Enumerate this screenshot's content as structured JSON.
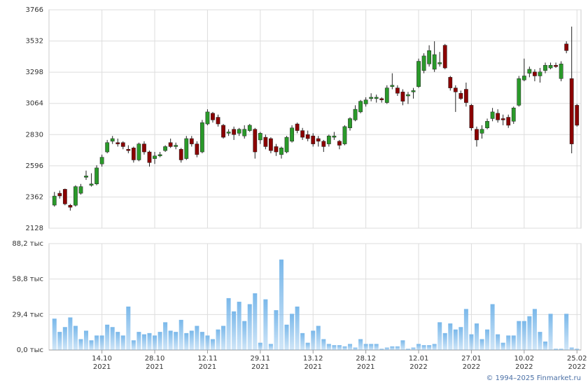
{
  "chart_data": {
    "type": "candlestick",
    "categories": [
      null,
      null,
      null,
      null,
      null,
      null,
      null,
      null,
      null,
      "14.10 2021",
      null,
      null,
      null,
      null,
      null,
      null,
      null,
      null,
      null,
      "28.10 2021",
      null,
      null,
      null,
      null,
      null,
      null,
      null,
      null,
      null,
      "12.11 2021",
      null,
      null,
      null,
      null,
      null,
      null,
      null,
      null,
      null,
      "29.11 2021",
      null,
      null,
      null,
      null,
      null,
      null,
      null,
      null,
      null,
      "13.12 2021",
      null,
      null,
      null,
      null,
      null,
      null,
      null,
      null,
      null,
      "28.12 2021",
      null,
      null,
      null,
      null,
      null,
      null,
      null,
      null,
      null,
      "12.01 2022",
      null,
      null,
      null,
      null,
      null,
      null,
      null,
      null,
      null,
      "27.01 2022",
      null,
      null,
      null,
      null,
      null,
      null,
      null,
      null,
      null,
      "10.02 2022",
      null,
      null,
      null,
      null,
      null,
      null,
      null,
      null,
      null,
      "25.02 2022"
    ],
    "open": [
      2301,
      2390,
      2420,
      2300,
      2300,
      2390,
      2510,
      2450,
      2460,
      2610,
      2700,
      2780,
      2770,
      2770,
      2720,
      2730,
      2640,
      2760,
      2700,
      2650,
      2670,
      2710,
      2770,
      2740,
      2720,
      2650,
      2800,
      2760,
      2700,
      2910,
      2990,
      2960,
      2900,
      2840,
      2870,
      2840,
      2820,
      2860,
      2870,
      2790,
      2810,
      2800,
      2740,
      2680,
      2700,
      2780,
      2910,
      2860,
      2830,
      2820,
      2800,
      2780,
      2760,
      2810,
      2780,
      2760,
      2880,
      2940,
      3000,
      3060,
      3100,
      3100,
      3100,
      3070,
      3190,
      3180,
      3150,
      3120,
      3150,
      3190,
      3310,
      3360,
      3320,
      3360,
      3500,
      3260,
      3180,
      3140,
      3170,
      3050,
      2870,
      2840,
      2880,
      2950,
      2990,
      2950,
      2960,
      2930,
      3050,
      3240,
      3290,
      3300,
      3270,
      3310,
      3330,
      3350,
      3250,
      3510,
      3250,
      3050
    ],
    "high": [
      2400,
      2410,
      2425,
      2310,
      2450,
      2460,
      2560,
      2540,
      2600,
      2680,
      2790,
      2820,
      2800,
      2780,
      2750,
      2740,
      2770,
      2780,
      2710,
      2700,
      2700,
      2750,
      2800,
      2770,
      2730,
      2820,
      2820,
      2780,
      2940,
      3020,
      3000,
      2980,
      2910,
      2870,
      2890,
      2880,
      2900,
      2910,
      2880,
      2850,
      2830,
      2810,
      2760,
      2740,
      2820,
      2900,
      2920,
      2880,
      2860,
      2840,
      2820,
      2790,
      2830,
      2850,
      2790,
      2900,
      2960,
      3050,
      3090,
      3110,
      3140,
      3130,
      3110,
      3200,
      3290,
      3200,
      3170,
      3150,
      3180,
      3400,
      3440,
      3500,
      3530,
      3450,
      3510,
      3270,
      3200,
      3160,
      3220,
      3060,
      2890,
      2900,
      2950,
      3030,
      3020,
      2980,
      2980,
      3040,
      3270,
      3400,
      3340,
      3320,
      3330,
      3370,
      3370,
      3370,
      3380,
      3530,
      3640,
      3060
    ],
    "low": [
      2290,
      2350,
      2300,
      2260,
      2290,
      2380,
      2490,
      2440,
      2450,
      2590,
      2690,
      2760,
      2740,
      2720,
      2690,
      2620,
      2630,
      2680,
      2590,
      2610,
      2660,
      2700,
      2730,
      2720,
      2620,
      2640,
      2740,
      2660,
      2690,
      2900,
      2920,
      2890,
      2800,
      2820,
      2790,
      2820,
      2800,
      2850,
      2650,
      2760,
      2720,
      2690,
      2670,
      2650,
      2690,
      2770,
      2840,
      2790,
      2780,
      2740,
      2740,
      2700,
      2740,
      2790,
      2720,
      2750,
      2860,
      2930,
      2990,
      3040,
      3080,
      3070,
      3070,
      3060,
      3170,
      3120,
      3050,
      3060,
      3100,
      3180,
      3290,
      3340,
      3300,
      3340,
      3320,
      3160,
      3000,
      3090,
      3040,
      2860,
      2740,
      2800,
      2870,
      2930,
      2920,
      2900,
      2880,
      2910,
      3040,
      3230,
      3260,
      3230,
      3220,
      3290,
      3320,
      3330,
      3230,
      3440,
      2690,
      2890
    ],
    "close": [
      2369,
      2370,
      2310,
      2285,
      2440,
      2440,
      2520,
      2460,
      2580,
      2660,
      2770,
      2800,
      2760,
      2740,
      2710,
      2640,
      2760,
      2700,
      2620,
      2670,
      2680,
      2740,
      2740,
      2750,
      2640,
      2800,
      2760,
      2680,
      2920,
      3000,
      2940,
      2910,
      2810,
      2850,
      2830,
      2870,
      2870,
      2900,
      2700,
      2840,
      2740,
      2710,
      2700,
      2730,
      2810,
      2880,
      2860,
      2810,
      2800,
      2760,
      2780,
      2740,
      2820,
      2820,
      2750,
      2890,
      2950,
      3020,
      3080,
      3090,
      3110,
      3110,
      3090,
      3180,
      3200,
      3140,
      3080,
      3130,
      3160,
      3380,
      3420,
      3460,
      3430,
      3370,
      3330,
      3180,
      3150,
      3100,
      3070,
      2880,
      2790,
      2870,
      2930,
      3000,
      2940,
      2940,
      2900,
      3030,
      3250,
      3270,
      3320,
      3270,
      3300,
      3350,
      3350,
      3340,
      3360,
      3460,
      2760,
      2900
    ],
    "up_color": "#2a9a2a",
    "down_color": "#8b0000",
    "ylim": [
      2128,
      3766
    ],
    "yticks": [
      2128,
      2362,
      2596,
      2830,
      3064,
      3298,
      3532,
      3766
    ],
    "volume": {
      "values": [
        26,
        15,
        19,
        27,
        20,
        9,
        16,
        8,
        12,
        12,
        21,
        19,
        15,
        12,
        36,
        8,
        15,
        13,
        14,
        12,
        15,
        23,
        16,
        15,
        25,
        14,
        16,
        20,
        15,
        12,
        9,
        17,
        20,
        43,
        32,
        40,
        24,
        38,
        47,
        6,
        42,
        5,
        33,
        75,
        21,
        30,
        36,
        14,
        6,
        16,
        20,
        9,
        5,
        4,
        4,
        3,
        5,
        2,
        9,
        5,
        5,
        5,
        1,
        2,
        3,
        3,
        8,
        1,
        2,
        5,
        4,
        4,
        5,
        23,
        14,
        22,
        17,
        19,
        34,
        13,
        22,
        9,
        17,
        38,
        13,
        6,
        12,
        12,
        24,
        24,
        28,
        34,
        15,
        7,
        30,
        1,
        1,
        30,
        2,
        1
      ],
      "color": "#7ab8ea",
      "ylim": [
        0,
        88.2
      ],
      "yticks": [
        {
          "value": 0,
          "label": "0,0 тыс"
        },
        {
          "value": 29.4,
          "label": "29,4 тыс"
        },
        {
          "value": 58.8,
          "label": "58,8 тыс"
        },
        {
          "value": 88.2,
          "label": "88,2 тыс"
        }
      ]
    },
    "footer": "© 1994–2025 Finmarket.ru"
  }
}
